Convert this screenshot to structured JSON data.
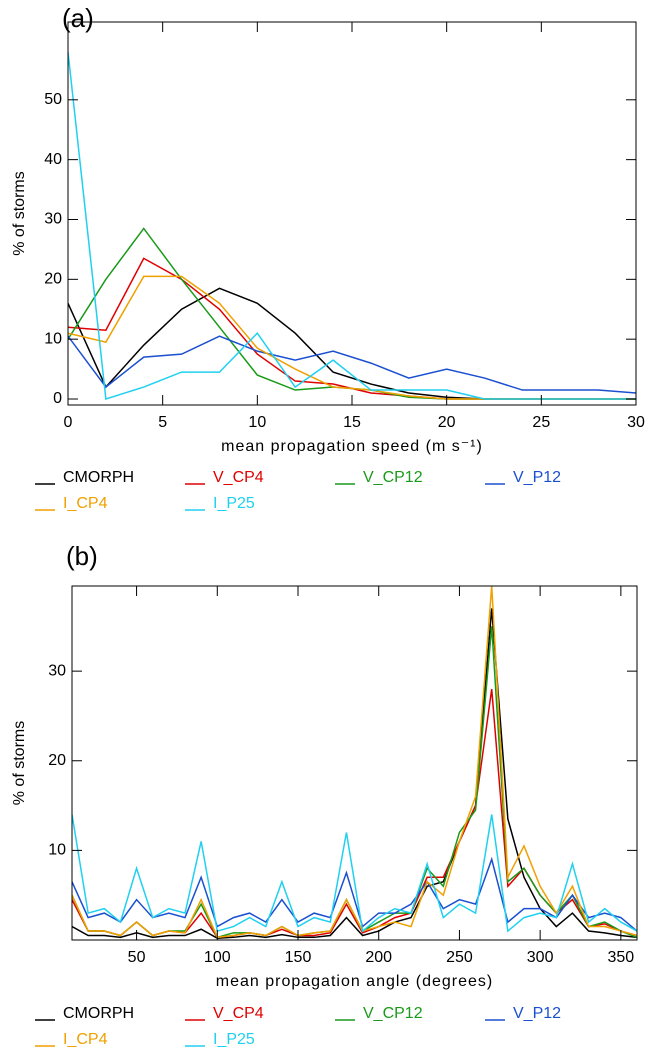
{
  "chart_data": [
    {
      "type": "line",
      "title": "(a)",
      "xlabel": "mean propagation speed (m s⁻¹)",
      "ylabel": "% of storms",
      "x": [
        0,
        2,
        4,
        6,
        8,
        10,
        12,
        14,
        16,
        18,
        20,
        22,
        24,
        26,
        28,
        30
      ],
      "xlim": [
        0,
        30
      ],
      "xticks": [
        0,
        5,
        10,
        15,
        20,
        25,
        30
      ],
      "ylim": [
        -1,
        63
      ],
      "yticks": [
        0,
        10,
        20,
        30,
        40,
        50
      ],
      "legend": "bottom",
      "series": [
        {
          "name": "CMORPH",
          "color": "#000000",
          "values": [
            16,
            2,
            9,
            15,
            18.5,
            16,
            11,
            4.5,
            2.5,
            1,
            0.3,
            0,
            0,
            0,
            0,
            0
          ]
        },
        {
          "name": "V_CP4",
          "color": "#e00000",
          "values": [
            12,
            11.5,
            23.5,
            20,
            15,
            7.5,
            3,
            2.5,
            1,
            0.5,
            0,
            0,
            0,
            0,
            0,
            0
          ]
        },
        {
          "name": "V_CP12",
          "color": "#1a9a1a",
          "values": [
            10,
            20,
            28.5,
            20,
            12,
            4,
            1.5,
            2,
            1.5,
            0.3,
            0,
            0,
            0,
            0,
            0,
            0
          ]
        },
        {
          "name": "V_P12",
          "color": "#1a50d0",
          "values": [
            10.5,
            2,
            7,
            7.5,
            10.5,
            8,
            6.5,
            8,
            6,
            3.5,
            5,
            3.5,
            1.5,
            1.5,
            1.5,
            1
          ]
        },
        {
          "name": "I_CP4",
          "color": "#f0a000",
          "values": [
            11,
            9.5,
            20.5,
            20.5,
            16,
            8.5,
            5,
            2,
            1.5,
            0.5,
            0,
            0,
            0,
            0,
            0,
            0
          ]
        },
        {
          "name": "I_P25",
          "color": "#20d0f0",
          "values": [
            58,
            0,
            2,
            4.5,
            4.5,
            11,
            2,
            6.5,
            1.5,
            1.5,
            1.5,
            0,
            0,
            0,
            0,
            0
          ]
        }
      ]
    },
    {
      "type": "line",
      "title": "(b)",
      "xlabel": "mean propagation angle (degrees)",
      "ylabel": "% of storms",
      "x": [
        10,
        20,
        30,
        40,
        50,
        60,
        70,
        80,
        90,
        100,
        110,
        120,
        130,
        140,
        150,
        160,
        170,
        180,
        190,
        200,
        210,
        220,
        230,
        240,
        250,
        260,
        270,
        280,
        290,
        300,
        310,
        320,
        330,
        340,
        350,
        360
      ],
      "xlim": [
        10,
        360
      ],
      "xticks": [
        50,
        100,
        150,
        200,
        250,
        300,
        350
      ],
      "ylim": [
        0,
        39.5
      ],
      "yticks": [
        10,
        20,
        30
      ],
      "legend": "bottom",
      "series": [
        {
          "name": "CMORPH",
          "color": "#000000",
          "values": [
            1.5,
            0.5,
            0.5,
            0.3,
            0.8,
            0.3,
            0.5,
            0.5,
            1.2,
            0.2,
            0.3,
            0.5,
            0.3,
            0.6,
            0.3,
            0.3,
            0.5,
            2.5,
            0.5,
            1,
            2,
            2.5,
            6,
            6.5,
            11,
            15,
            37,
            13.5,
            7,
            3.5,
            1.5,
            3,
            1,
            0.8,
            0.5,
            0.3
          ]
        },
        {
          "name": "V_CP4",
          "color": "#e00000",
          "values": [
            4.5,
            1,
            1,
            0.5,
            2,
            0.5,
            1,
            0.8,
            3,
            0.3,
            0.5,
            0.8,
            0.5,
            1.2,
            0.5,
            0.5,
            0.8,
            4,
            0.8,
            1.5,
            2.5,
            3,
            7,
            7,
            11,
            15,
            28,
            6,
            8,
            5,
            3,
            4.5,
            1.5,
            1.8,
            1,
            0.5
          ]
        },
        {
          "name": "V_CP12",
          "color": "#1a9a1a",
          "values": [
            5,
            1,
            1,
            0.5,
            2,
            0.5,
            1,
            1,
            4,
            0.3,
            0.8,
            0.8,
            0.5,
            1.5,
            0.5,
            0.8,
            1,
            4.5,
            1,
            2,
            3,
            3,
            8,
            6,
            12,
            14.5,
            35,
            6.5,
            8,
            5,
            3,
            5,
            1.5,
            2,
            1,
            0.3
          ]
        },
        {
          "name": "V_P12",
          "color": "#1a50d0",
          "values": [
            6.5,
            2.5,
            3,
            2,
            4.5,
            2.5,
            3,
            2.5,
            7,
            1.5,
            2.5,
            3,
            2,
            4.5,
            2,
            3,
            2.5,
            7.5,
            1.5,
            3,
            3,
            4,
            6.5,
            3.5,
            4.5,
            4,
            9,
            2,
            3.5,
            3.5,
            2.5,
            5,
            2.5,
            3,
            2.5,
            1
          ]
        },
        {
          "name": "I_CP4",
          "color": "#f0a000",
          "values": [
            5,
            1,
            1,
            0.5,
            2,
            0.5,
            1,
            0.8,
            4.5,
            0.3,
            0.5,
            0.8,
            0.5,
            1.5,
            0.5,
            0.8,
            1,
            4.5,
            1,
            1.5,
            2,
            1.5,
            6.5,
            5,
            11,
            16,
            39.5,
            7,
            10.5,
            6,
            3,
            6,
            1.5,
            1.5,
            1,
            0.5
          ]
        },
        {
          "name": "I_P25",
          "color": "#20d0f0",
          "values": [
            14,
            3,
            3.5,
            2,
            8,
            2.5,
            3.5,
            3,
            11,
            1,
            1.5,
            2.5,
            1.5,
            6.5,
            1.5,
            2.5,
            2,
            12,
            1,
            2.5,
            3.5,
            3,
            8.5,
            2.5,
            4,
            3,
            14,
            1,
            2.5,
            3,
            2.5,
            8.5,
            2,
            3.5,
            2,
            1
          ]
        }
      ]
    }
  ]
}
